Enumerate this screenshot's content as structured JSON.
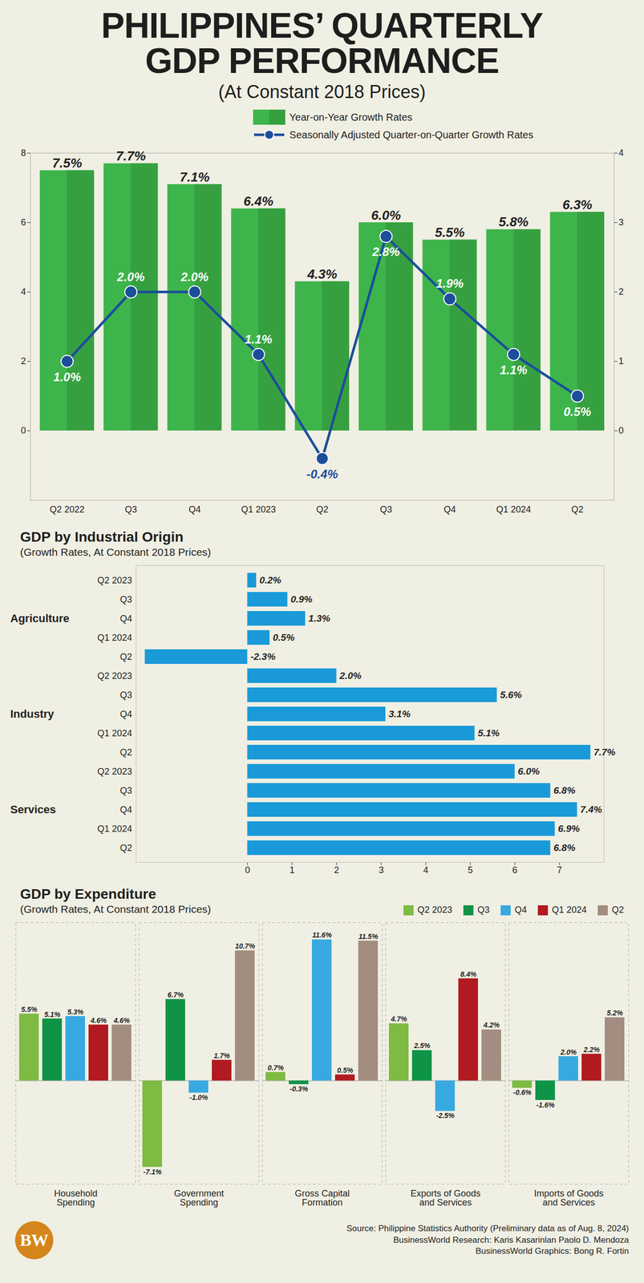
{
  "title": "PHILIPPINES’ QUARTERLY GDP PERFORMANCE",
  "subtitle": "(At Constant 2018 Prices)",
  "chart_data": [
    {
      "type": "bar",
      "categories": [
        "Q2 2022",
        "Q3",
        "Q4",
        "Q1 2023",
        "Q2",
        "Q3",
        "Q4",
        "Q1 2024",
        "Q2"
      ],
      "series": [
        {
          "name": "Year-on-Year Growth Rates",
          "type": "bar",
          "color": "#3db54a",
          "values": [
            7.5,
            7.7,
            7.1,
            6.4,
            4.3,
            6.0,
            5.5,
            5.8,
            6.3
          ],
          "value_labels": [
            "7.5%",
            "7.7%",
            "7.1%",
            "6.4%",
            "4.3%",
            "6.0%",
            "5.5%",
            "5.8%",
            "6.3%"
          ]
        },
        {
          "name": "Seasonally Adjusted Quarter-on-Quarter Growth Rates",
          "type": "line",
          "axis": "y2",
          "color": "#1b4e9b",
          "marker": "circle",
          "values": [
            1.0,
            2.0,
            2.0,
            1.1,
            -0.4,
            2.8,
            1.9,
            1.1,
            0.5
          ],
          "value_labels": [
            "1.0%",
            "2.0%",
            "2.0%",
            "1.1%",
            "-0.4%",
            "2.8%",
            "1.9%",
            "1.1%",
            "0.5%"
          ]
        }
      ],
      "ylim": [
        -2,
        8
      ],
      "yticks": [
        0,
        2,
        4,
        6,
        8
      ],
      "y2lim": [
        -1,
        4
      ],
      "y2ticks": [
        0,
        1,
        2,
        3,
        4
      ],
      "data_labels": true,
      "legend": "top-right"
    },
    {
      "type": "bar",
      "orientation": "horizontal",
      "title": "GDP by Industrial Origin",
      "subtitle": "(Growth Rates, At Constant 2018 Prices)",
      "categories": [
        "Q2 2023",
        "Q3",
        "Q4",
        "Q1 2024",
        "Q2"
      ],
      "series": [
        {
          "name": "Agriculture",
          "color": "#1a9ad9",
          "values": [
            0.2,
            0.9,
            1.3,
            0.5,
            -2.3
          ],
          "value_labels": [
            "0.2%",
            "0.9%",
            "1.3%",
            "0.5%",
            "-2.3%"
          ]
        },
        {
          "name": "Industry",
          "color": "#1a9ad9",
          "values": [
            2.0,
            5.6,
            3.1,
            5.1,
            7.7
          ],
          "value_labels": [
            "2.0%",
            "5.6%",
            "3.1%",
            "5.1%",
            "7.7%"
          ]
        },
        {
          "name": "Services",
          "color": "#1a9ad9",
          "values": [
            6.0,
            6.8,
            7.4,
            6.9,
            6.8
          ],
          "value_labels": [
            "6.0%",
            "6.8%",
            "7.4%",
            "6.9%",
            "6.8%"
          ]
        }
      ],
      "xlim": [
        -2.5,
        8
      ],
      "xticks": [
        0,
        1,
        2,
        3,
        4,
        5,
        6,
        7
      ],
      "data_labels": true
    },
    {
      "type": "bar",
      "title": "GDP by Expenditure",
      "subtitle": "(Growth Rates, At Constant 2018 Prices)",
      "categories": [
        "Household Spending",
        "Government Spending",
        "Gross Capital Formation",
        "Exports of Goods and Services",
        "Imports of Goods and Services"
      ],
      "series": [
        {
          "name": "Q2 2023",
          "color": "#7dbb42",
          "values": [
            5.5,
            -7.1,
            0.7,
            4.7,
            -0.6
          ],
          "value_labels": [
            "5.5%",
            "-7.1%",
            "0.7%",
            "4.7%",
            "-0.6%"
          ]
        },
        {
          "name": "Q3",
          "color": "#0f9447",
          "values": [
            5.1,
            6.7,
            -0.3,
            2.5,
            -1.6
          ],
          "value_labels": [
            "5.1%",
            "6.7%",
            "-0.3%",
            "2.5%",
            "-1.6%"
          ]
        },
        {
          "name": "Q4",
          "color": "#38a9e0",
          "values": [
            5.3,
            -1.0,
            11.6,
            -2.5,
            2.0
          ],
          "value_labels": [
            "5.3%",
            "-1.0%",
            "11.6%",
            "-2.5%",
            "2.0%"
          ]
        },
        {
          "name": "Q1 2024",
          "color": "#b01a20",
          "values": [
            4.6,
            1.7,
            0.5,
            8.4,
            2.2
          ],
          "value_labels": [
            "4.6%",
            "1.7%",
            "0.5%",
            "8.4%",
            "2.2%"
          ]
        },
        {
          "name": "Q2",
          "color": "#a38d80",
          "values": [
            4.6,
            10.7,
            11.5,
            4.2,
            5.2
          ],
          "value_labels": [
            "4.6%",
            "10.7%",
            "11.5%",
            "4.2%",
            "5.2%"
          ]
        }
      ],
      "ylim": [
        -8.5,
        13
      ],
      "tick_labels": false,
      "data_labels": true,
      "legend": "top-right"
    }
  ],
  "source": "Source: Philippine Statistics Authority (Preliminary data as of Aug. 8, 2024)",
  "credits": [
    "BusinessWorld Research: Karis Kasarinlan Paolo D. Mendoza",
    "BusinessWorld Graphics: Bong R. Fortin"
  ],
  "logo": "BW"
}
